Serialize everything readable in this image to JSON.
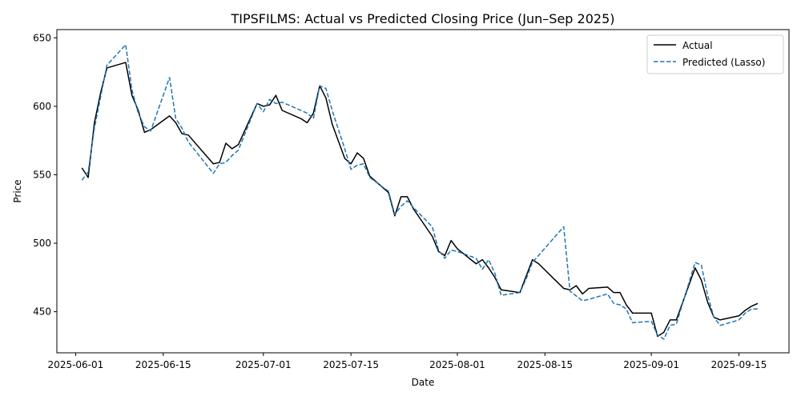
{
  "chart_data": {
    "type": "line",
    "title": "TIPSFILMS: Actual vs Predicted Closing Price (Jun–Sep 2025)",
    "xlabel": "Date",
    "ylabel": "Price",
    "xlim": [
      "2025-05-29",
      "2025-09-23"
    ],
    "ylim": [
      420,
      656
    ],
    "x_ticks": [
      "2025-06-01",
      "2025-06-15",
      "2025-07-01",
      "2025-07-15",
      "2025-08-01",
      "2025-08-15",
      "2025-09-01",
      "2025-09-15"
    ],
    "y_ticks": [
      450,
      500,
      550,
      600,
      650
    ],
    "grid": false,
    "legend_position": "top-right",
    "series": [
      {
        "name": "Actual",
        "color": "#000000",
        "style": "solid",
        "points": [
          [
            "2025-06-02",
            555
          ],
          [
            "2025-06-03",
            548
          ],
          [
            "2025-06-04",
            588
          ],
          [
            "2025-06-05",
            610
          ],
          [
            "2025-06-06",
            628
          ],
          [
            "2025-06-09",
            632
          ],
          [
            "2025-06-10",
            608
          ],
          [
            "2025-06-11",
            597
          ],
          [
            "2025-06-12",
            581
          ],
          [
            "2025-06-13",
            583
          ],
          [
            "2025-06-16",
            593
          ],
          [
            "2025-06-17",
            588
          ],
          [
            "2025-06-18",
            580
          ],
          [
            "2025-06-19",
            579
          ],
          [
            "2025-06-23",
            558
          ],
          [
            "2025-06-24",
            559
          ],
          [
            "2025-06-25",
            573
          ],
          [
            "2025-06-26",
            569
          ],
          [
            "2025-06-27",
            572
          ],
          [
            "2025-06-30",
            602
          ],
          [
            "2025-07-01",
            600
          ],
          [
            "2025-07-02",
            601
          ],
          [
            "2025-07-03",
            608
          ],
          [
            "2025-07-04",
            597
          ],
          [
            "2025-07-07",
            591
          ],
          [
            "2025-07-08",
            588
          ],
          [
            "2025-07-09",
            595
          ],
          [
            "2025-07-10",
            615
          ],
          [
            "2025-07-11",
            606
          ],
          [
            "2025-07-12",
            587
          ],
          [
            "2025-07-14",
            562
          ],
          [
            "2025-07-15",
            558
          ],
          [
            "2025-07-16",
            566
          ],
          [
            "2025-07-17",
            562
          ],
          [
            "2025-07-18",
            549
          ],
          [
            "2025-07-21",
            537
          ],
          [
            "2025-07-22",
            520
          ],
          [
            "2025-07-23",
            534
          ],
          [
            "2025-07-24",
            534
          ],
          [
            "2025-07-25",
            525
          ],
          [
            "2025-07-28",
            505
          ],
          [
            "2025-07-29",
            494
          ],
          [
            "2025-07-30",
            491
          ],
          [
            "2025-07-31",
            502
          ],
          [
            "2025-08-01",
            496
          ],
          [
            "2025-08-04",
            485
          ],
          [
            "2025-08-05",
            488
          ],
          [
            "2025-08-06",
            482
          ],
          [
            "2025-08-07",
            475
          ],
          [
            "2025-08-08",
            466
          ],
          [
            "2025-08-11",
            464
          ],
          [
            "2025-08-12",
            476
          ],
          [
            "2025-08-13",
            488
          ],
          [
            "2025-08-14",
            485
          ],
          [
            "2025-08-18",
            467
          ],
          [
            "2025-08-19",
            466
          ],
          [
            "2025-08-20",
            469
          ],
          [
            "2025-08-21",
            463
          ],
          [
            "2025-08-22",
            467
          ],
          [
            "2025-08-25",
            468
          ],
          [
            "2025-08-26",
            464
          ],
          [
            "2025-08-27",
            464
          ],
          [
            "2025-08-28",
            455
          ],
          [
            "2025-08-29",
            449
          ],
          [
            "2025-09-01",
            449
          ],
          [
            "2025-09-02",
            432
          ],
          [
            "2025-09-03",
            435
          ],
          [
            "2025-09-04",
            444
          ],
          [
            "2025-09-05",
            444
          ],
          [
            "2025-09-08",
            482
          ],
          [
            "2025-09-09",
            473
          ],
          [
            "2025-09-10",
            457
          ],
          [
            "2025-09-11",
            446
          ],
          [
            "2025-09-12",
            444
          ],
          [
            "2025-09-15",
            447
          ],
          [
            "2025-09-16",
            451
          ],
          [
            "2025-09-17",
            454
          ],
          [
            "2025-09-18",
            456
          ]
        ]
      },
      {
        "name": "Predicted (Lasso)",
        "color": "#1f77b4",
        "style": "dashed",
        "points": [
          [
            "2025-06-02",
            546
          ],
          [
            "2025-06-03",
            552
          ],
          [
            "2025-06-04",
            584
          ],
          [
            "2025-06-05",
            607
          ],
          [
            "2025-06-06",
            630
          ],
          [
            "2025-06-09",
            645
          ],
          [
            "2025-06-10",
            612
          ],
          [
            "2025-06-11",
            595
          ],
          [
            "2025-06-12",
            585
          ],
          [
            "2025-06-13",
            582
          ],
          [
            "2025-06-16",
            621
          ],
          [
            "2025-06-17",
            591
          ],
          [
            "2025-06-18",
            584
          ],
          [
            "2025-06-19",
            574
          ],
          [
            "2025-06-23",
            551
          ],
          [
            "2025-06-24",
            558
          ],
          [
            "2025-06-25",
            559
          ],
          [
            "2025-06-26",
            564
          ],
          [
            "2025-06-27",
            568
          ],
          [
            "2025-06-30",
            602
          ],
          [
            "2025-07-01",
            596
          ],
          [
            "2025-07-02",
            605
          ],
          [
            "2025-07-03",
            602
          ],
          [
            "2025-07-04",
            603
          ],
          [
            "2025-07-08",
            595
          ],
          [
            "2025-07-09",
            591
          ],
          [
            "2025-07-10",
            615
          ],
          [
            "2025-07-11",
            613
          ],
          [
            "2025-07-12",
            597
          ],
          [
            "2025-07-14",
            569
          ],
          [
            "2025-07-15",
            554
          ],
          [
            "2025-07-16",
            557
          ],
          [
            "2025-07-17",
            558
          ],
          [
            "2025-07-18",
            548
          ],
          [
            "2025-07-21",
            538
          ],
          [
            "2025-07-22",
            521
          ],
          [
            "2025-07-23",
            527
          ],
          [
            "2025-07-24",
            531
          ],
          [
            "2025-07-25",
            526
          ],
          [
            "2025-07-28",
            512
          ],
          [
            "2025-07-29",
            495
          ],
          [
            "2025-07-30",
            489
          ],
          [
            "2025-07-31",
            495
          ],
          [
            "2025-08-01",
            494
          ],
          [
            "2025-08-04",
            489
          ],
          [
            "2025-08-05",
            481
          ],
          [
            "2025-08-06",
            488
          ],
          [
            "2025-08-07",
            478
          ],
          [
            "2025-08-08",
            462
          ],
          [
            "2025-08-11",
            464
          ],
          [
            "2025-08-12",
            474
          ],
          [
            "2025-08-13",
            486
          ],
          [
            "2025-08-18",
            512
          ],
          [
            "2025-08-19",
            465
          ],
          [
            "2025-08-21",
            458
          ],
          [
            "2025-08-22",
            459
          ],
          [
            "2025-08-25",
            463
          ],
          [
            "2025-08-26",
            456
          ],
          [
            "2025-08-27",
            455
          ],
          [
            "2025-08-28",
            452
          ],
          [
            "2025-08-29",
            442
          ],
          [
            "2025-09-01",
            443
          ],
          [
            "2025-09-02",
            433
          ],
          [
            "2025-09-03",
            430
          ],
          [
            "2025-09-04",
            440
          ],
          [
            "2025-09-05",
            441
          ],
          [
            "2025-09-08",
            486
          ],
          [
            "2025-09-09",
            484
          ],
          [
            "2025-09-10",
            462
          ],
          [
            "2025-09-11",
            446
          ],
          [
            "2025-09-12",
            440
          ],
          [
            "2025-09-15",
            444
          ],
          [
            "2025-09-16",
            449
          ],
          [
            "2025-09-17",
            452
          ],
          [
            "2025-09-18",
            452
          ]
        ]
      }
    ]
  }
}
